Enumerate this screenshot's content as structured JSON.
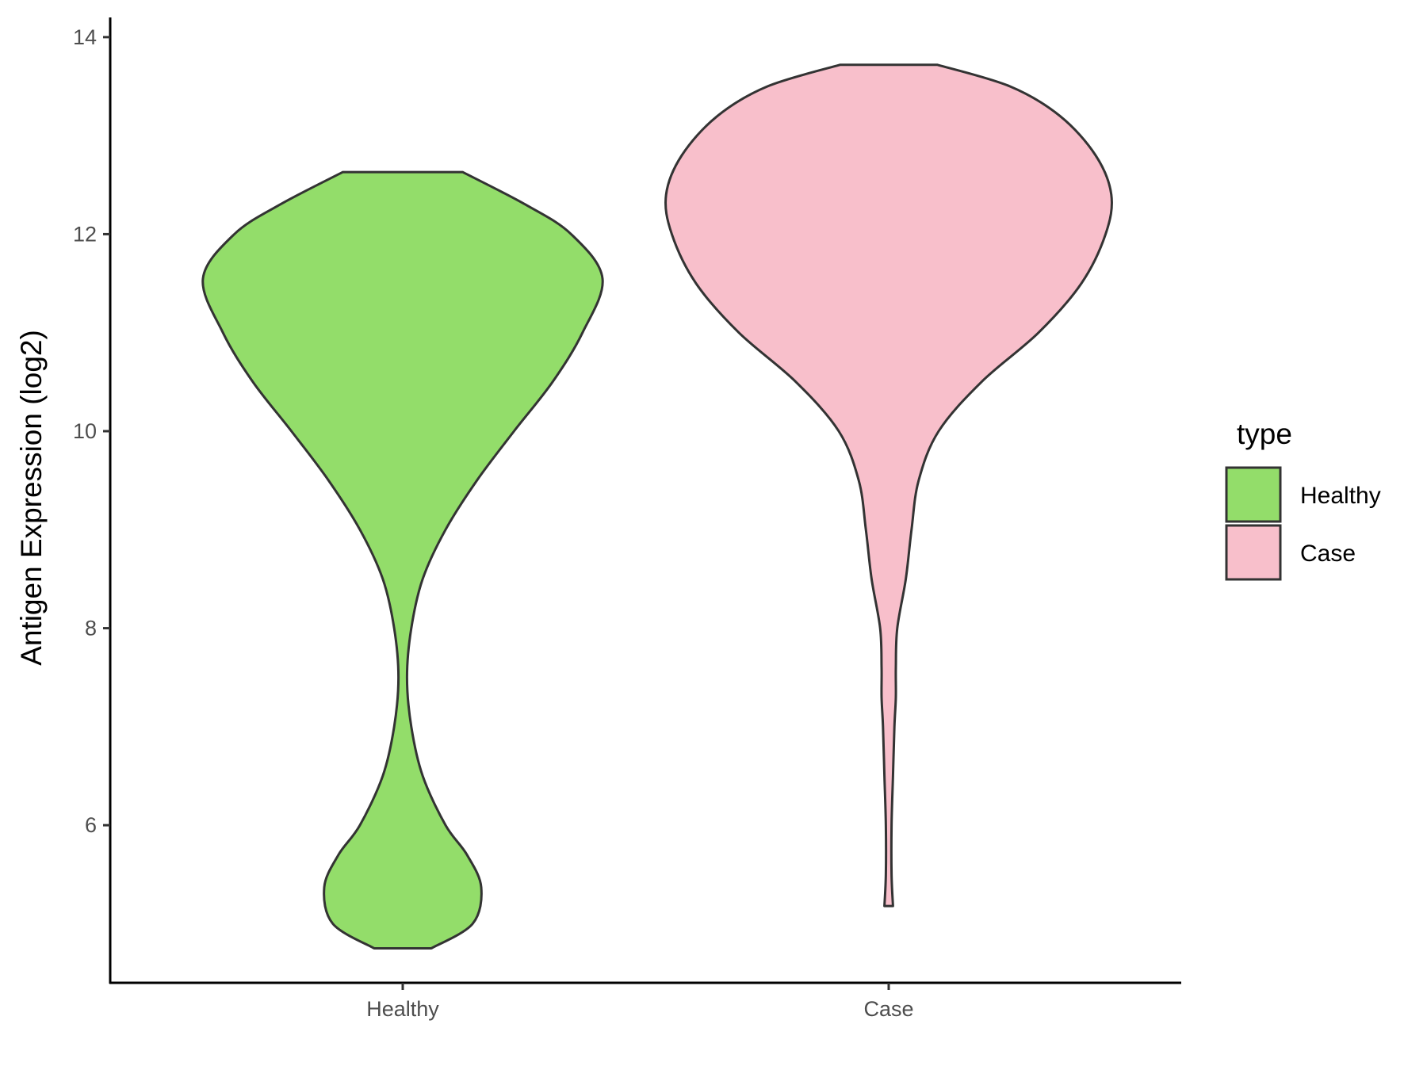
{
  "chart_data": {
    "type": "violin",
    "title": "",
    "xlabel": "",
    "ylabel": "Antigen Expression (log2)",
    "ylim": [
      4.4,
      14.2
    ],
    "yticks": [
      6,
      8,
      10,
      12,
      14
    ],
    "categories": [
      "Healthy",
      "Case"
    ],
    "grid": false,
    "legend": {
      "title": "type",
      "position": "right",
      "entries": [
        {
          "label": "Healthy",
          "color": "#93dd6a"
        },
        {
          "label": "Case",
          "color": "#f8bfcb"
        }
      ]
    },
    "series": [
      {
        "category": "Healthy",
        "color": "#93dd6a",
        "min": 4.75,
        "max": 12.63,
        "profile": [
          [
            4.75,
            0.2
          ],
          [
            5.0,
            0.49
          ],
          [
            5.37,
            0.55
          ],
          [
            5.7,
            0.45
          ],
          [
            6.0,
            0.3
          ],
          [
            6.5,
            0.14
          ],
          [
            7.0,
            0.06
          ],
          [
            7.5,
            0.03
          ],
          [
            8.0,
            0.06
          ],
          [
            8.5,
            0.14
          ],
          [
            9.0,
            0.3
          ],
          [
            9.5,
            0.52
          ],
          [
            10.0,
            0.78
          ],
          [
            10.5,
            1.05
          ],
          [
            11.0,
            1.26
          ],
          [
            11.55,
            1.4
          ],
          [
            12.0,
            1.18
          ],
          [
            12.3,
            0.86
          ],
          [
            12.63,
            0.42
          ]
        ]
      },
      {
        "category": "Case",
        "color": "#f8bfcb",
        "min": 5.18,
        "max": 13.72,
        "profile": [
          [
            5.18,
            0.03
          ],
          [
            5.5,
            0.02
          ],
          [
            6.0,
            0.02
          ],
          [
            6.5,
            0.03
          ],
          [
            7.0,
            0.04
          ],
          [
            7.3,
            0.05
          ],
          [
            7.6,
            0.05
          ],
          [
            8.0,
            0.06
          ],
          [
            8.5,
            0.12
          ],
          [
            9.0,
            0.16
          ],
          [
            9.5,
            0.21
          ],
          [
            10.0,
            0.35
          ],
          [
            10.5,
            0.65
          ],
          [
            11.0,
            1.05
          ],
          [
            11.5,
            1.35
          ],
          [
            12.0,
            1.52
          ],
          [
            12.4,
            1.56
          ],
          [
            12.8,
            1.45
          ],
          [
            13.2,
            1.2
          ],
          [
            13.5,
            0.85
          ],
          [
            13.72,
            0.34
          ]
        ]
      }
    ]
  }
}
